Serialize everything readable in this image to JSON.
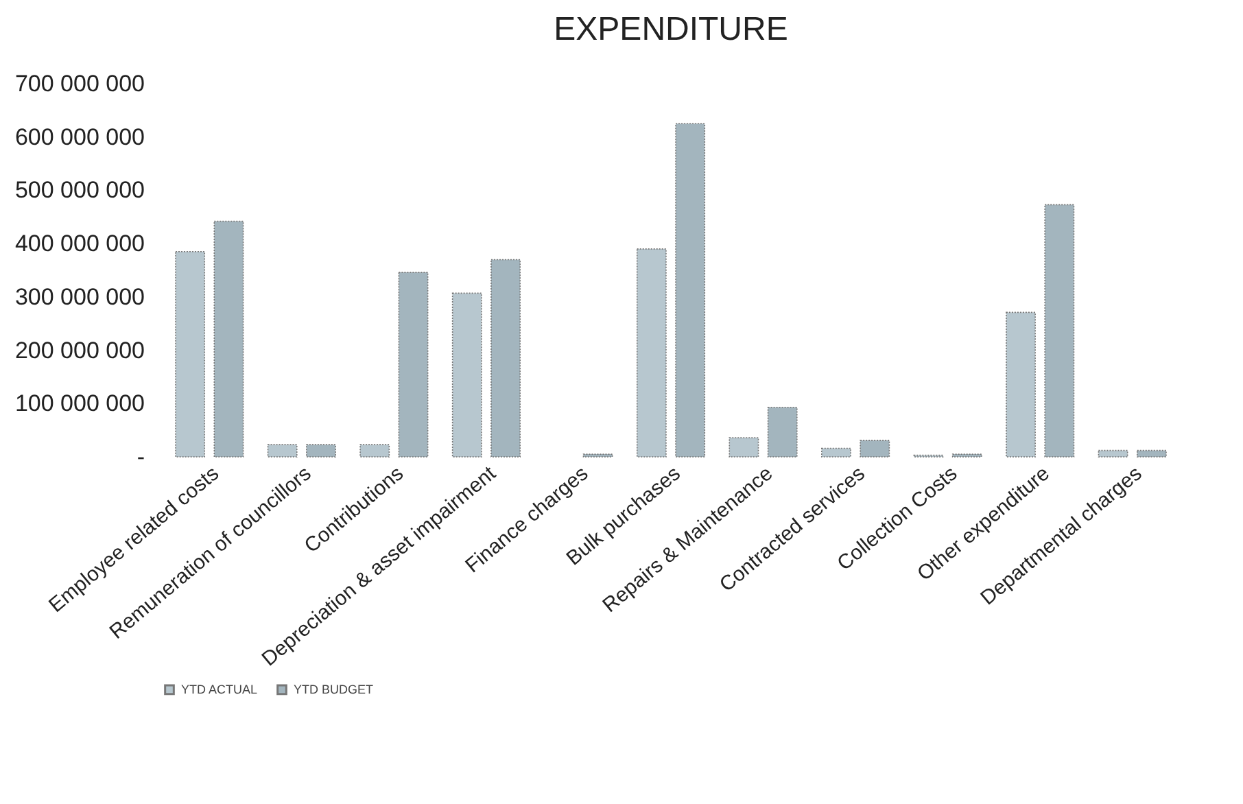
{
  "chart_data": {
    "type": "bar",
    "title": "EXPENDITURE",
    "categories": [
      "Employee related costs",
      "Remuneration of councillors",
      "Contributions",
      "Depreciation & asset impairment",
      "Finance charges",
      "Bulk purchases",
      "Repairs & Maintenance",
      "Contracted services",
      "Collection Costs",
      "Other expenditure",
      "Departmental charges"
    ],
    "series": [
      {
        "name": "YTD ACTUAL",
        "color": "#b7c7cf",
        "values": [
          385000000,
          23000000,
          23000000,
          307000000,
          null,
          390000000,
          36000000,
          16000000,
          3000000,
          271000000,
          12000000
        ]
      },
      {
        "name": "YTD BUDGET",
        "color": "#a3b5be",
        "values": [
          442000000,
          23000000,
          346000000,
          370000000,
          5000000,
          625000000,
          93000000,
          31000000,
          5000000,
          473000000,
          12000000
        ]
      }
    ],
    "ylim": [
      0,
      700000000
    ],
    "yticks": [
      {
        "value": 0,
        "label": "-"
      },
      {
        "value": 100000000,
        "label": "100 000 000"
      },
      {
        "value": 200000000,
        "label": "200 000 000"
      },
      {
        "value": 300000000,
        "label": "300 000 000"
      },
      {
        "value": 400000000,
        "label": "400 000 000"
      },
      {
        "value": 500000000,
        "label": "500 000 000"
      },
      {
        "value": 600000000,
        "label": "600 000 000"
      },
      {
        "value": 700000000,
        "label": "700 000 000"
      }
    ],
    "grid": false,
    "legend": "bottom"
  }
}
